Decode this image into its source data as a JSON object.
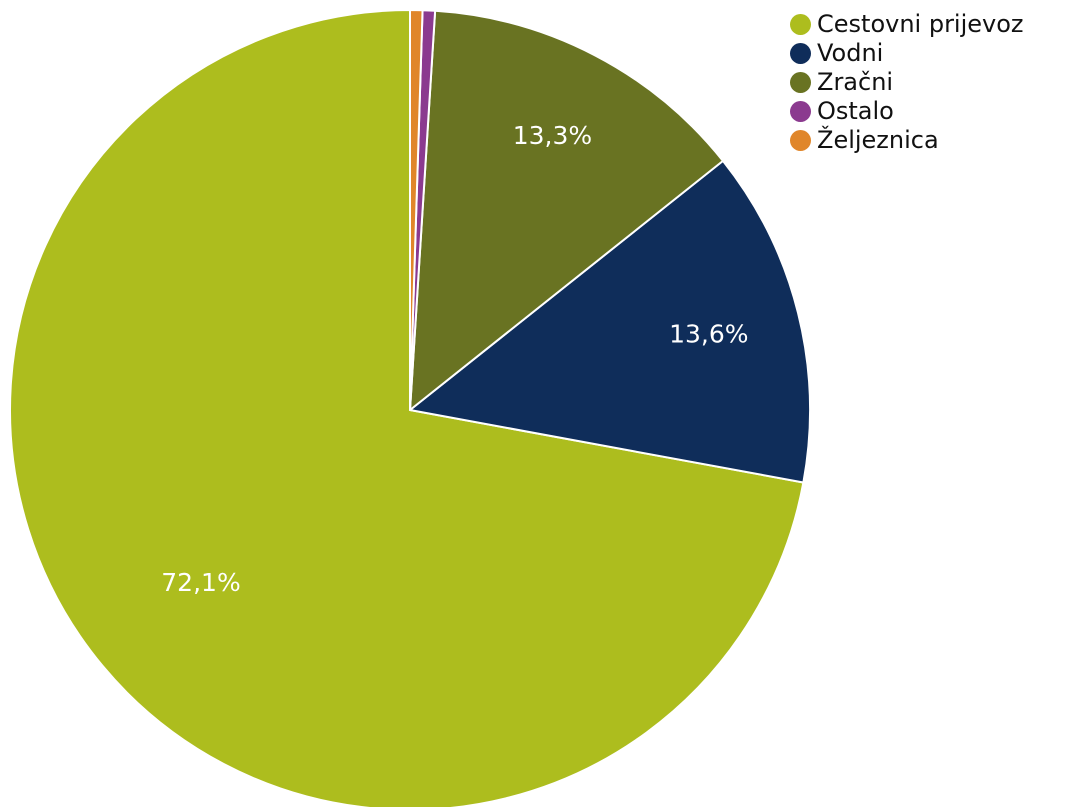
{
  "chart_data": {
    "type": "pie",
    "categories": [
      "Cestovni prijevoz",
      "Vodni",
      "Zračni",
      "Ostalo",
      "Željeznica"
    ],
    "values": [
      72.1,
      13.6,
      13.3,
      0.5,
      0.5
    ],
    "data_labels": [
      "72,1%",
      "13,6%",
      "13,3%",
      "",
      ""
    ],
    "colors": [
      "#adbd1e",
      "#0f2d5a",
      "#697322",
      "#8b3a8f",
      "#e0862a"
    ],
    "legend_position": "top-right",
    "start_angle": "12 o'clock, counter-clockwise"
  }
}
